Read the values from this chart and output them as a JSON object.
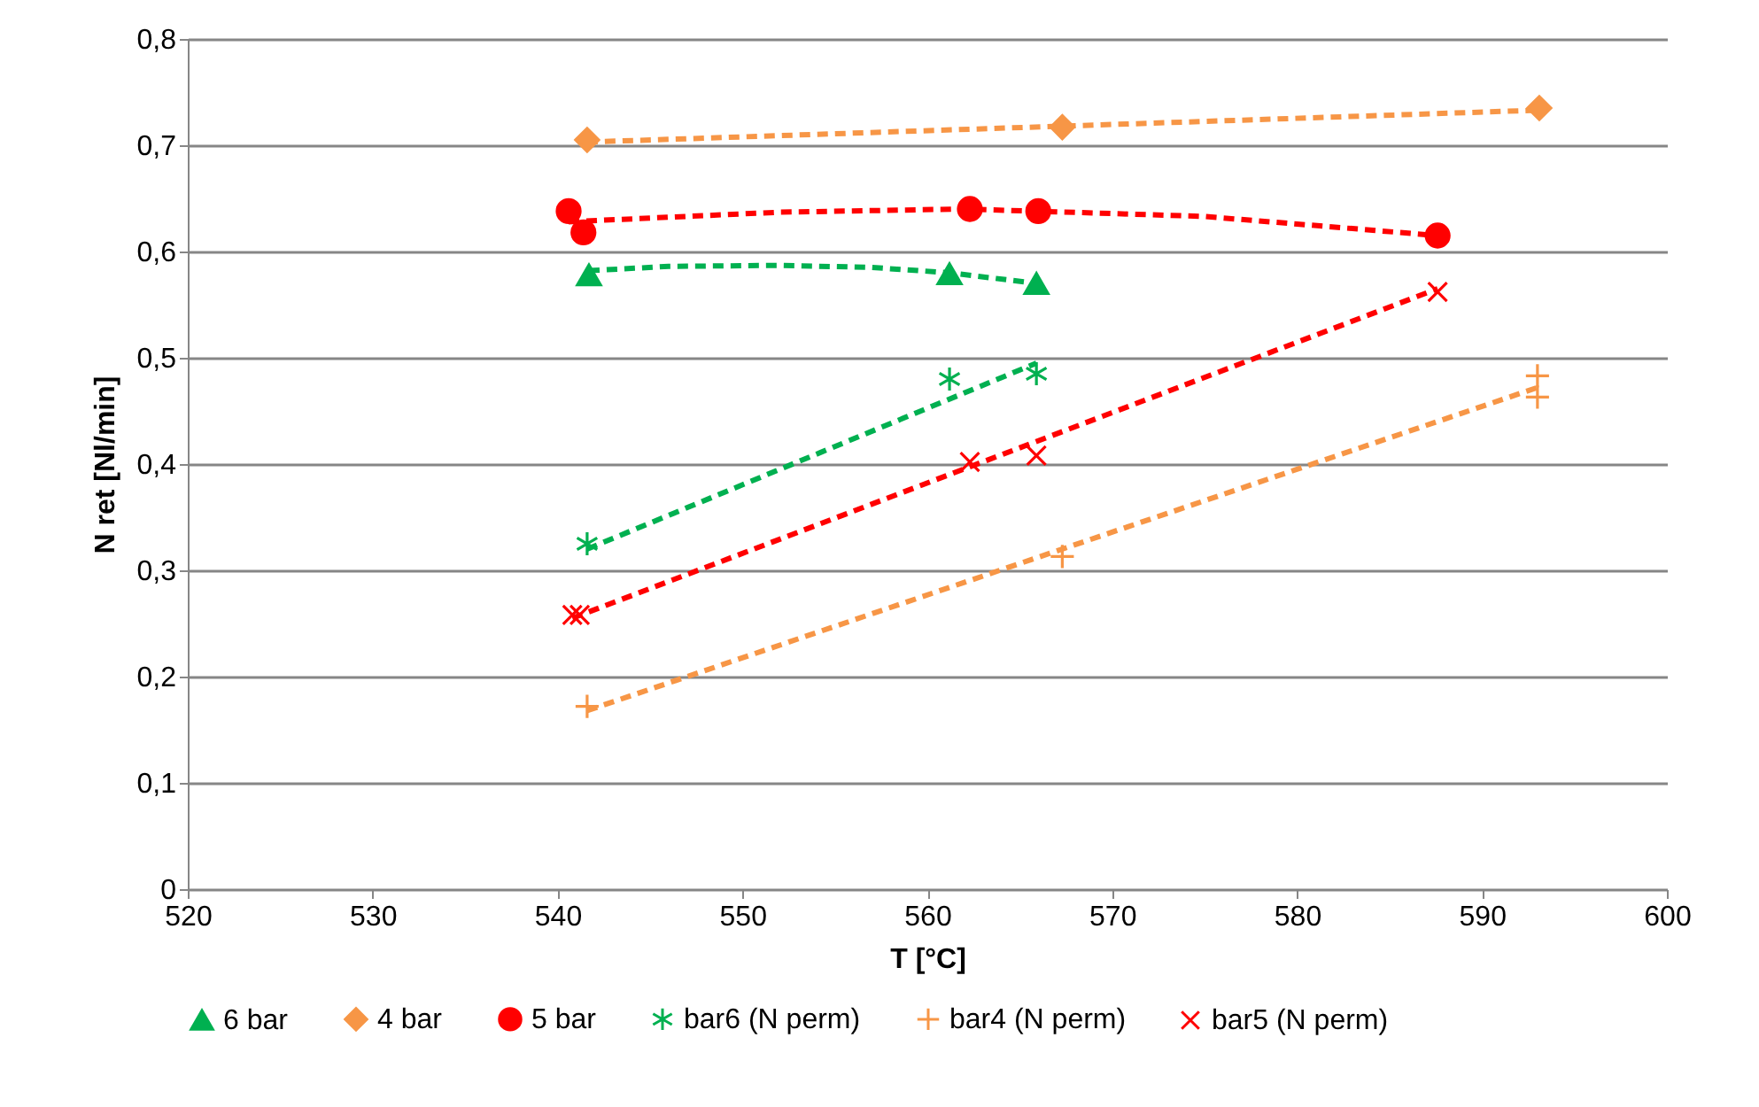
{
  "chart_data": {
    "type": "scatter",
    "xlabel": "T [°C]",
    "ylabel": "N ret [Nl/min]",
    "xlim": [
      520,
      600
    ],
    "xticks": [
      520,
      530,
      540,
      550,
      560,
      570,
      580,
      590,
      600
    ],
    "ylim": [
      0,
      0.8
    ],
    "yticks": [
      {
        "value": 0,
        "label": "0"
      },
      {
        "value": 0.1,
        "label": "0,1"
      },
      {
        "value": 0.2,
        "label": "0,2"
      },
      {
        "value": 0.3,
        "label": "0,3"
      },
      {
        "value": 0.4,
        "label": "0,4"
      },
      {
        "value": 0.5,
        "label": "0,5"
      },
      {
        "value": 0.6,
        "label": "0,6"
      },
      {
        "value": 0.7,
        "label": "0,7"
      },
      {
        "value": 0.8,
        "label": "0,8"
      }
    ],
    "grid": "y",
    "legend": "bottom",
    "series": [
      {
        "name": "6 bar",
        "marker": "triangle",
        "color": "#00b050",
        "x": [
          541.7,
          561.2,
          565.9
        ],
        "values": [
          0.578,
          0.579,
          0.57
        ]
      },
      {
        "name": "4 bar",
        "marker": "diamond",
        "color": "#f79646",
        "x": [
          541.6,
          567.3,
          593.1
        ],
        "values": [
          0.705,
          0.717,
          0.735
        ]
      },
      {
        "name": "5 bar",
        "marker": "circle",
        "color": "#ff0000",
        "x": [
          540.6,
          541.4,
          562.3,
          566.0,
          587.6
        ],
        "values": [
          0.638,
          0.618,
          0.64,
          0.638,
          0.615
        ]
      },
      {
        "name": "bar6 (N perm)",
        "marker": "cross",
        "color": "#00b050",
        "x": [
          541.6,
          561.2,
          565.9
        ],
        "values": [
          0.325,
          0.48,
          0.485
        ]
      },
      {
        "name": "bar4 (N perm)",
        "marker": "cross",
        "color": "#f79646",
        "x": [
          541.6,
          567.3,
          593.0,
          593.0
        ],
        "values": [
          0.172,
          0.313,
          0.483,
          0.463
        ]
      },
      {
        "name": "bar5 (N perm)",
        "marker": "cross",
        "color": "#ff0000",
        "x": [
          540.8,
          541.2,
          562.3,
          565.9,
          587.6
        ],
        "values": [
          0.258,
          0.258,
          0.402,
          0.408,
          0.562
        ]
      },
      {
        "type": "line",
        "marker": "none",
        "line_style": "dashed",
        "color": "#00b050",
        "x": [
          541.7,
          546,
          552,
          557,
          561.2,
          565.9
        ],
        "values": [
          0.582,
          0.586,
          0.587,
          0.585,
          0.58,
          0.57
        ]
      },
      {
        "type": "line",
        "marker": "none",
        "line_style": "dashed",
        "color": "#f79646",
        "x": [
          541.6,
          593.1
        ],
        "values": [
          0.703,
          0.733
        ]
      },
      {
        "type": "line",
        "marker": "none",
        "line_style": "dashed",
        "color": "#ff0000",
        "x": [
          540.6,
          552,
          562,
          575,
          587.6
        ],
        "values": [
          0.628,
          0.637,
          0.64,
          0.633,
          0.615
        ]
      },
      {
        "type": "line",
        "marker": "none",
        "line_style": "dashed",
        "color": "#00b050",
        "x": [
          541.6,
          565.9
        ],
        "values": [
          0.32,
          0.495
        ]
      },
      {
        "type": "line",
        "marker": "none",
        "line_style": "dashed",
        "color": "#f79646",
        "x": [
          541.6,
          593.0
        ],
        "values": [
          0.168,
          0.472
        ]
      },
      {
        "type": "line",
        "marker": "none",
        "line_style": "dashed",
        "color": "#ff0000",
        "x": [
          540.8,
          587.6
        ],
        "values": [
          0.255,
          0.565
        ]
      }
    ]
  }
}
